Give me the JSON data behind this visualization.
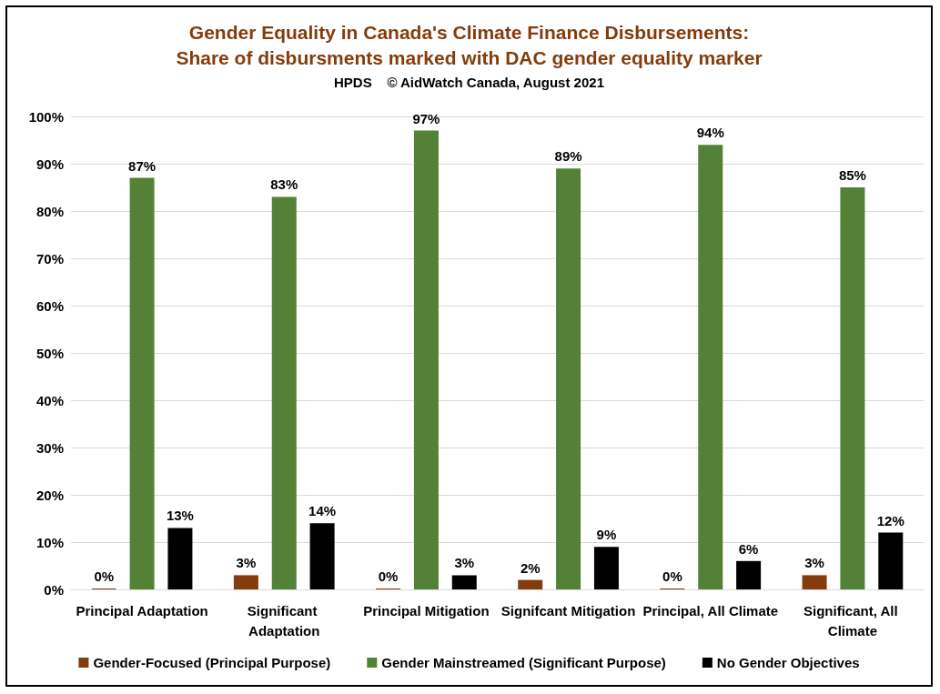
{
  "chart_data": {
    "type": "bar",
    "title": "Gender Equality in Canada's Climate Finance Disbursements:\nShare of disbursments marked with DAC gender equality marker",
    "subtitle": "HPDS    © AidWatch Canada, August 2021",
    "categories": [
      "Principal Adaptation",
      "Significant Adaptation",
      "Principal Mitigation",
      "Signifcant Mitigation",
      "Principal, All Climate",
      "Significant, All Climate"
    ],
    "series": [
      {
        "name": "Gender-Focused (Principal Purpose)",
        "color": "#843c0c",
        "values": [
          0,
          3,
          0,
          2,
          0,
          3
        ],
        "value_labels": [
          "0%",
          "3%",
          "0%",
          "2%",
          "0%",
          "3%"
        ]
      },
      {
        "name": "Gender Mainstreamed (Significant Purpose)",
        "color": "#538135",
        "values": [
          87,
          83,
          97,
          89,
          94,
          85
        ],
        "value_labels": [
          "87%",
          "83%",
          "97%",
          "89%",
          "94%",
          "85%"
        ]
      },
      {
        "name": "No Gender Objectives",
        "color": "#000000",
        "values": [
          13,
          14,
          3,
          9,
          6,
          12
        ],
        "value_labels": [
          "13%",
          "14%",
          "3%",
          "9%",
          "6%",
          "12%"
        ]
      }
    ],
    "ylim": [
      0,
      100
    ],
    "yticks": [
      {
        "value": 0,
        "label": "0%"
      },
      {
        "value": 10,
        "label": "10%"
      },
      {
        "value": 20,
        "label": "20%"
      },
      {
        "value": 30,
        "label": "30%"
      },
      {
        "value": 40,
        "label": "40%"
      },
      {
        "value": 50,
        "label": "50%"
      },
      {
        "value": 60,
        "label": "60%"
      },
      {
        "value": 70,
        "label": "70%"
      },
      {
        "value": 80,
        "label": "80%"
      },
      {
        "value": 90,
        "label": "90%"
      },
      {
        "value": 100,
        "label": "100%"
      }
    ],
    "grid": "y",
    "legend": "bottom"
  }
}
